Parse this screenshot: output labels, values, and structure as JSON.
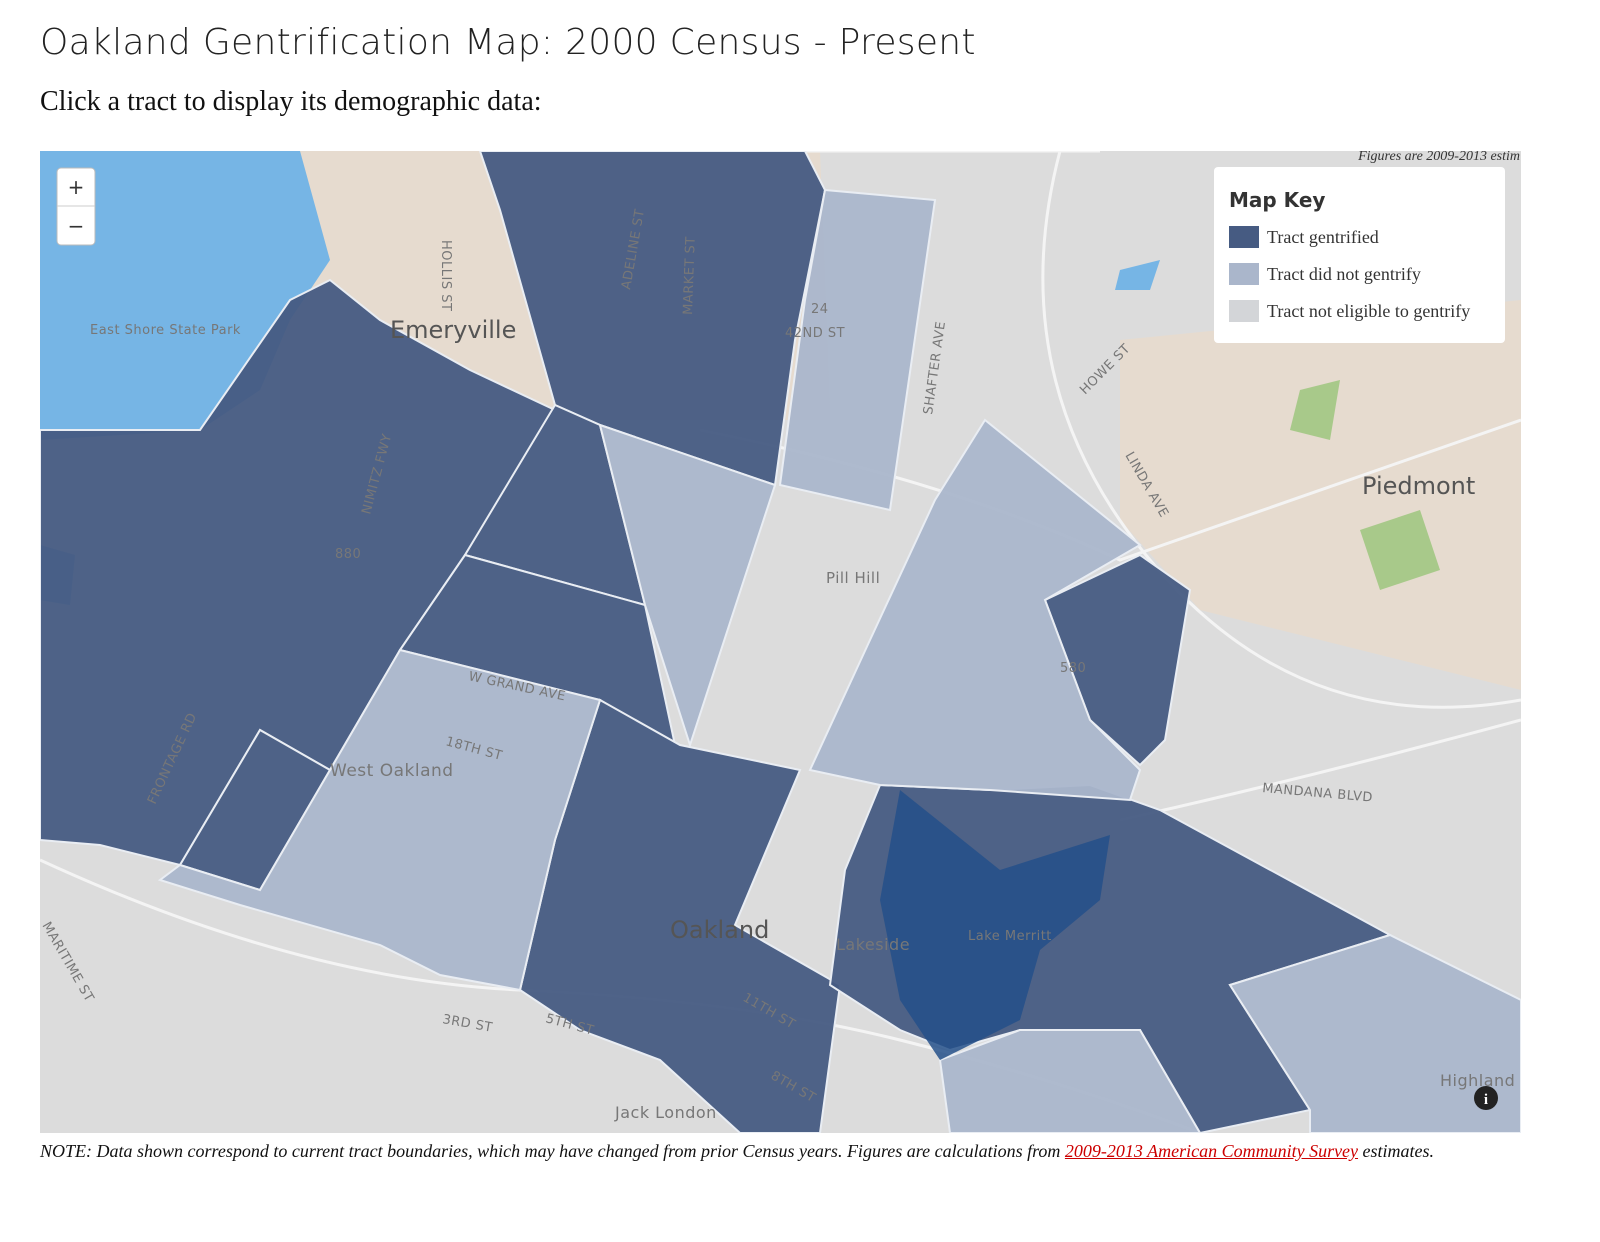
{
  "header": {
    "title": "Oakland Gentrification Map: 2000 Census - Present",
    "instruction": "Click a tract to display its demographic data:"
  },
  "map": {
    "attribution": "Figures are 2009-2013 estim",
    "zoom": {
      "in": "+",
      "out": "−"
    },
    "labels": [
      "Emeryville",
      "Piedmont",
      "East Shore State Park",
      "Pill Hill",
      "West Oakland",
      "Oakland",
      "Lakeside",
      "Lake Merritt",
      "Highland",
      "Jack London",
      "HOLLIS ST",
      "ADELINE ST",
      "MARKET ST",
      "42ND ST",
      "SHAFTER AVE",
      "HOWE ST",
      "LINDA AVE",
      "NIMITZ FWY",
      "FRONTAGE RD",
      "W GRAND AVE",
      "18TH ST",
      "3RD ST",
      "5TH ST",
      "8TH ST",
      "11TH ST",
      "MANDANA BLVD",
      "MARITIME ST",
      "880",
      "24",
      "580"
    ]
  },
  "legend": {
    "title": "Map Key",
    "items": [
      {
        "label": "Tract gentrified",
        "color": "#465b82"
      },
      {
        "label": "Tract did not gentrify",
        "color": "#aab6cb"
      },
      {
        "label": "Tract not eligible to gentrify",
        "color": "#d3d5d8"
      }
    ]
  },
  "note": {
    "prefix": "NOTE: Data shown correspond to current tract boundaries, which may have changed from prior Census years. Figures are calculations from ",
    "link": "2009-2013 American Community Survey",
    "suffix": " estimates."
  }
}
